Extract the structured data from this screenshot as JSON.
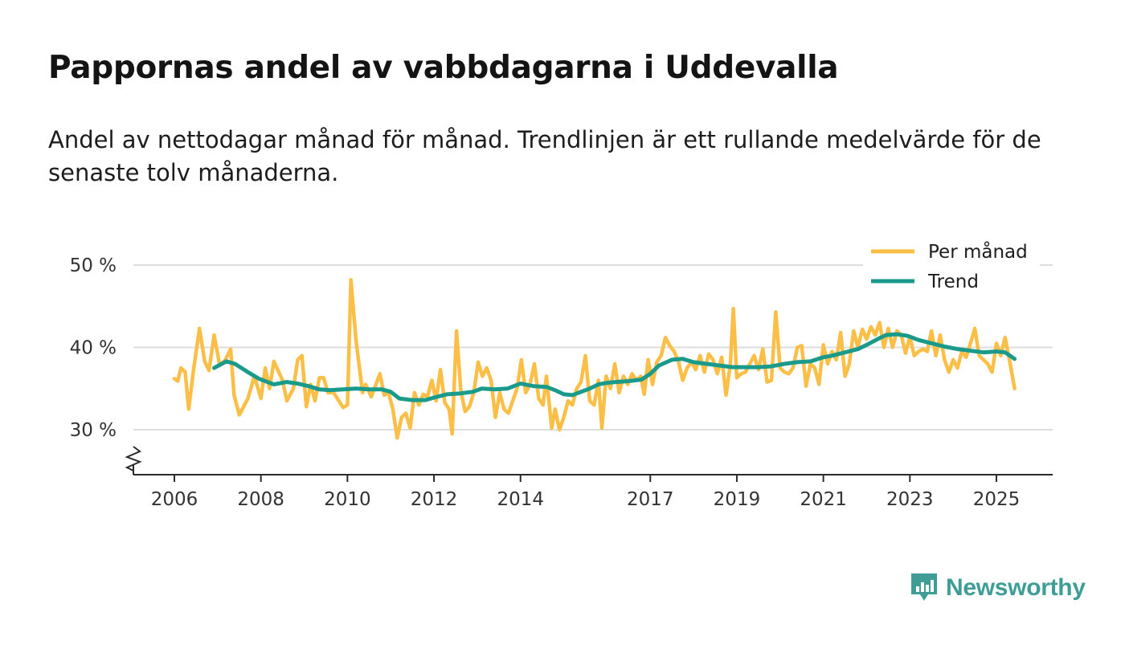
{
  "title": "Pappornas andel av vabbdagarna i Uddevalla",
  "subtitle": "Andel av nettodagar månad för månad. Trendlinjen är ett rullande medelvärde för de senaste tolv månaderna.",
  "brand": {
    "name": "Newsworthy",
    "icon": "newsworthy-logo-icon",
    "color": "#3e9e96"
  },
  "chart_data": {
    "type": "line",
    "title": "Pappornas andel av vabbdagarna i Uddevalla",
    "xlabel": "",
    "ylabel": "",
    "x_ticks": [
      2006,
      2008,
      2010,
      2012,
      2014,
      2017,
      2019,
      2021,
      2023,
      2025
    ],
    "x_tick_labels": [
      "2006",
      "2008",
      "2010",
      "2012",
      "2014",
      "2017",
      "2019",
      "2021",
      "2023",
      "2025"
    ],
    "y_ticks": [
      30,
      40,
      50
    ],
    "y_tick_labels": [
      "30 %",
      "40 %",
      "50 %"
    ],
    "ylim": [
      25,
      52
    ],
    "grid": true,
    "axis_break": true,
    "legend_position": "top-right",
    "series": [
      {
        "name": "Per månad",
        "color": "#fbbf48",
        "anchors": [
          [
            2006.0,
            36.2
          ],
          [
            2006.08,
            35.9
          ],
          [
            2006.15,
            37.5
          ],
          [
            2006.25,
            37.0
          ],
          [
            2006.33,
            32.5
          ],
          [
            2006.45,
            37.5
          ],
          [
            2006.58,
            42.3
          ],
          [
            2006.7,
            38.3
          ],
          [
            2006.8,
            37.2
          ],
          [
            2006.92,
            41.5
          ],
          [
            2007.05,
            37.8
          ],
          [
            2007.18,
            38.5
          ],
          [
            2007.3,
            39.8
          ],
          [
            2007.38,
            34.2
          ],
          [
            2007.5,
            31.8
          ],
          [
            2007.7,
            33.8
          ],
          [
            2007.85,
            36.5
          ],
          [
            2008.0,
            33.8
          ],
          [
            2008.1,
            37.5
          ],
          [
            2008.2,
            35.0
          ],
          [
            2008.3,
            38.3
          ],
          [
            2008.5,
            36.0
          ],
          [
            2008.6,
            33.5
          ],
          [
            2008.75,
            35.0
          ],
          [
            2008.85,
            38.5
          ],
          [
            2008.95,
            39.0
          ],
          [
            2009.05,
            32.8
          ],
          [
            2009.15,
            35.5
          ],
          [
            2009.25,
            33.5
          ],
          [
            2009.35,
            36.3
          ],
          [
            2009.45,
            36.3
          ],
          [
            2009.55,
            34.5
          ],
          [
            2009.68,
            34.5
          ],
          [
            2009.78,
            33.7
          ],
          [
            2009.9,
            32.7
          ],
          [
            2010.0,
            33.0
          ],
          [
            2010.08,
            48.2
          ],
          [
            2010.2,
            40.8
          ],
          [
            2010.35,
            34.5
          ],
          [
            2010.42,
            35.5
          ],
          [
            2010.55,
            34.0
          ],
          [
            2010.75,
            36.8
          ],
          [
            2010.85,
            34.2
          ],
          [
            2010.95,
            34.5
          ],
          [
            2011.05,
            32.5
          ],
          [
            2011.15,
            29.0
          ],
          [
            2011.25,
            31.5
          ],
          [
            2011.35,
            32.0
          ],
          [
            2011.45,
            30.2
          ],
          [
            2011.55,
            34.5
          ],
          [
            2011.65,
            33.0
          ],
          [
            2011.75,
            34.3
          ],
          [
            2011.85,
            34.0
          ],
          [
            2011.95,
            36.0
          ],
          [
            2012.05,
            33.5
          ],
          [
            2012.15,
            37.3
          ],
          [
            2012.25,
            33.3
          ],
          [
            2012.35,
            32.5
          ],
          [
            2012.42,
            29.5
          ],
          [
            2012.52,
            42.0
          ],
          [
            2012.62,
            34.8
          ],
          [
            2012.72,
            32.2
          ],
          [
            2012.82,
            32.8
          ],
          [
            2012.92,
            34.5
          ],
          [
            2013.02,
            38.2
          ],
          [
            2013.12,
            36.5
          ],
          [
            2013.22,
            37.5
          ],
          [
            2013.32,
            36.0
          ],
          [
            2013.42,
            31.5
          ],
          [
            2013.52,
            34.5
          ],
          [
            2013.62,
            32.5
          ],
          [
            2013.72,
            32.0
          ],
          [
            2013.82,
            33.5
          ],
          [
            2013.92,
            35.0
          ],
          [
            2014.02,
            38.5
          ],
          [
            2014.12,
            34.5
          ],
          [
            2014.22,
            35.5
          ],
          [
            2014.32,
            38.0
          ],
          [
            2014.42,
            33.8
          ],
          [
            2014.52,
            33.0
          ],
          [
            2014.6,
            36.5
          ],
          [
            2014.72,
            30.2
          ],
          [
            2014.8,
            32.5
          ],
          [
            2014.9,
            30.0
          ],
          [
            2015.0,
            31.5
          ],
          [
            2015.1,
            33.5
          ],
          [
            2015.2,
            33.0
          ],
          [
            2015.3,
            35.0
          ],
          [
            2015.4,
            35.8
          ],
          [
            2015.5,
            39.0
          ],
          [
            2015.6,
            33.5
          ],
          [
            2015.7,
            33.0
          ],
          [
            2015.8,
            36.0
          ],
          [
            2015.88,
            30.2
          ],
          [
            2015.98,
            36.5
          ],
          [
            2016.08,
            35.0
          ],
          [
            2016.18,
            38.0
          ],
          [
            2016.28,
            34.5
          ],
          [
            2016.38,
            36.5
          ],
          [
            2016.48,
            35.5
          ],
          [
            2016.58,
            36.8
          ],
          [
            2016.68,
            36.0
          ],
          [
            2016.78,
            36.5
          ],
          [
            2016.86,
            34.3
          ],
          [
            2016.95,
            38.5
          ],
          [
            2017.05,
            35.5
          ],
          [
            2017.15,
            38.2
          ],
          [
            2017.25,
            39.0
          ],
          [
            2017.35,
            41.2
          ],
          [
            2017.45,
            40.2
          ],
          [
            2017.55,
            39.5
          ],
          [
            2017.65,
            38.3
          ],
          [
            2017.75,
            36.0
          ],
          [
            2017.85,
            37.5
          ],
          [
            2017.95,
            38.2
          ],
          [
            2018.05,
            37.3
          ],
          [
            2018.15,
            39.0
          ],
          [
            2018.25,
            37.0
          ],
          [
            2018.35,
            39.2
          ],
          [
            2018.45,
            38.5
          ],
          [
            2018.55,
            36.8
          ],
          [
            2018.65,
            38.8
          ],
          [
            2018.75,
            34.2
          ],
          [
            2018.85,
            38.0
          ],
          [
            2018.92,
            44.7
          ],
          [
            2019.0,
            36.3
          ],
          [
            2019.1,
            36.8
          ],
          [
            2019.2,
            37.0
          ],
          [
            2019.3,
            38.0
          ],
          [
            2019.4,
            39.0
          ],
          [
            2019.5,
            37.3
          ],
          [
            2019.6,
            39.8
          ],
          [
            2019.7,
            35.8
          ],
          [
            2019.8,
            36.0
          ],
          [
            2019.9,
            44.3
          ],
          [
            2020.0,
            37.5
          ],
          [
            2020.1,
            37.0
          ],
          [
            2020.2,
            36.8
          ],
          [
            2020.3,
            37.5
          ],
          [
            2020.4,
            40.0
          ],
          [
            2020.5,
            40.2
          ],
          [
            2020.6,
            35.3
          ],
          [
            2020.7,
            38.0
          ],
          [
            2020.8,
            37.5
          ],
          [
            2020.9,
            35.5
          ],
          [
            2021.0,
            40.3
          ],
          [
            2021.1,
            38.0
          ],
          [
            2021.2,
            39.5
          ],
          [
            2021.3,
            38.5
          ],
          [
            2021.4,
            41.8
          ],
          [
            2021.5,
            36.5
          ],
          [
            2021.6,
            38.0
          ],
          [
            2021.7,
            42.0
          ],
          [
            2021.8,
            40.0
          ],
          [
            2021.9,
            42.2
          ],
          [
            2022.0,
            41.0
          ],
          [
            2022.1,
            42.5
          ],
          [
            2022.2,
            41.5
          ],
          [
            2022.3,
            43.0
          ],
          [
            2022.4,
            40.0
          ],
          [
            2022.5,
            42.3
          ],
          [
            2022.6,
            40.0
          ],
          [
            2022.7,
            42.0
          ],
          [
            2022.8,
            41.5
          ],
          [
            2022.9,
            39.3
          ],
          [
            2023.0,
            41.3
          ],
          [
            2023.1,
            39.0
          ],
          [
            2023.2,
            39.5
          ],
          [
            2023.3,
            39.8
          ],
          [
            2023.4,
            39.5
          ],
          [
            2023.5,
            42.0
          ],
          [
            2023.6,
            39.0
          ],
          [
            2023.7,
            41.5
          ],
          [
            2023.8,
            38.5
          ],
          [
            2023.9,
            37.0
          ],
          [
            2024.0,
            38.5
          ],
          [
            2024.1,
            37.5
          ],
          [
            2024.2,
            39.5
          ],
          [
            2024.3,
            38.8
          ],
          [
            2024.4,
            40.5
          ],
          [
            2024.5,
            42.3
          ],
          [
            2024.6,
            39.0
          ],
          [
            2024.7,
            38.5
          ],
          [
            2024.8,
            38.0
          ],
          [
            2024.9,
            37.0
          ],
          [
            2025.0,
            40.5
          ],
          [
            2025.1,
            39.0
          ],
          [
            2025.2,
            41.2
          ],
          [
            2025.3,
            38.5
          ],
          [
            2025.42,
            35.0
          ]
        ]
      },
      {
        "name": "Trend",
        "color": "#1a9a8b",
        "anchors": [
          [
            2006.92,
            37.5
          ],
          [
            2007.2,
            38.3
          ],
          [
            2007.4,
            38.0
          ],
          [
            2007.7,
            37.0
          ],
          [
            2007.95,
            36.2
          ],
          [
            2008.3,
            35.5
          ],
          [
            2008.6,
            35.8
          ],
          [
            2008.85,
            35.6
          ],
          [
            2009.1,
            35.3
          ],
          [
            2009.35,
            34.9
          ],
          [
            2009.6,
            34.8
          ],
          [
            2009.9,
            34.9
          ],
          [
            2010.2,
            35.0
          ],
          [
            2010.5,
            34.9
          ],
          [
            2010.8,
            34.9
          ],
          [
            2011.0,
            34.6
          ],
          [
            2011.2,
            33.8
          ],
          [
            2011.5,
            33.6
          ],
          [
            2011.8,
            33.6
          ],
          [
            2012.0,
            33.9
          ],
          [
            2012.3,
            34.3
          ],
          [
            2012.6,
            34.4
          ],
          [
            2012.9,
            34.6
          ],
          [
            2013.1,
            35.0
          ],
          [
            2013.4,
            34.9
          ],
          [
            2013.7,
            35.0
          ],
          [
            2014.0,
            35.6
          ],
          [
            2014.3,
            35.3
          ],
          [
            2014.6,
            35.2
          ],
          [
            2014.8,
            34.8
          ],
          [
            2015.0,
            34.3
          ],
          [
            2015.2,
            34.2
          ],
          [
            2015.4,
            34.6
          ],
          [
            2015.6,
            35.0
          ],
          [
            2015.8,
            35.5
          ],
          [
            2016.0,
            35.7
          ],
          [
            2016.2,
            35.8
          ],
          [
            2016.5,
            35.9
          ],
          [
            2016.8,
            36.1
          ],
          [
            2017.0,
            36.8
          ],
          [
            2017.2,
            37.8
          ],
          [
            2017.5,
            38.5
          ],
          [
            2017.75,
            38.6
          ],
          [
            2018.0,
            38.2
          ],
          [
            2018.3,
            38.0
          ],
          [
            2018.6,
            37.8
          ],
          [
            2018.9,
            37.6
          ],
          [
            2019.2,
            37.6
          ],
          [
            2019.5,
            37.6
          ],
          [
            2019.8,
            37.7
          ],
          [
            2020.1,
            38.0
          ],
          [
            2020.4,
            38.2
          ],
          [
            2020.7,
            38.3
          ],
          [
            2021.0,
            38.8
          ],
          [
            2021.2,
            39.0
          ],
          [
            2021.5,
            39.4
          ],
          [
            2021.8,
            39.8
          ],
          [
            2022.0,
            40.3
          ],
          [
            2022.25,
            41.0
          ],
          [
            2022.45,
            41.5
          ],
          [
            2022.7,
            41.6
          ],
          [
            2022.95,
            41.4
          ],
          [
            2023.2,
            40.9
          ],
          [
            2023.5,
            40.5
          ],
          [
            2023.8,
            40.1
          ],
          [
            2024.1,
            39.8
          ],
          [
            2024.4,
            39.6
          ],
          [
            2024.7,
            39.4
          ],
          [
            2025.0,
            39.5
          ],
          [
            2025.2,
            39.4
          ],
          [
            2025.42,
            38.6
          ]
        ]
      }
    ]
  }
}
